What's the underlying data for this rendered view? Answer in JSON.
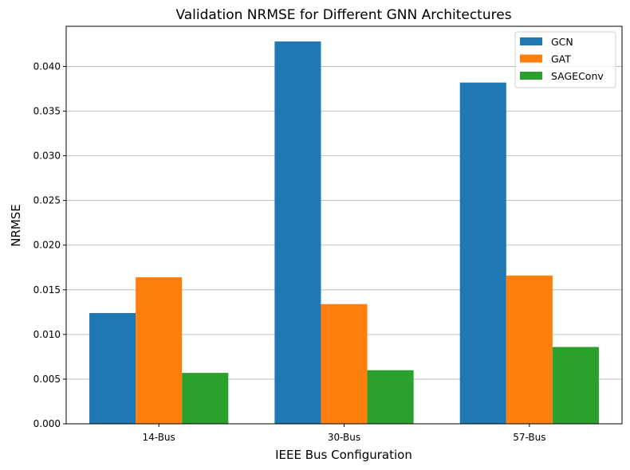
{
  "chart_data": {
    "type": "bar",
    "title": "Validation NRMSE for Different GNN Architectures",
    "xlabel": "IEEE Bus Configuration",
    "ylabel": "NRMSE",
    "categories": [
      "14-Bus",
      "30-Bus",
      "57-Bus"
    ],
    "series": [
      {
        "name": "GCN",
        "color": "#1f77b4",
        "values": [
          0.0124,
          0.0428,
          0.0382
        ]
      },
      {
        "name": "GAT",
        "color": "#ff7f0e",
        "values": [
          0.0164,
          0.0134,
          0.0166
        ]
      },
      {
        "name": "SAGEConv",
        "color": "#2ca02c",
        "values": [
          0.0057,
          0.006,
          0.0086
        ]
      }
    ],
    "ylim": [
      0,
      0.0445
    ],
    "yticks": [
      "0.000",
      "0.005",
      "0.010",
      "0.015",
      "0.020",
      "0.025",
      "0.030",
      "0.035",
      "0.040"
    ],
    "ytick_values": [
      0,
      0.005,
      0.01,
      0.015,
      0.02,
      0.025,
      0.03,
      0.035,
      0.04
    ],
    "grid": "y",
    "legend_position": "top-right"
  }
}
